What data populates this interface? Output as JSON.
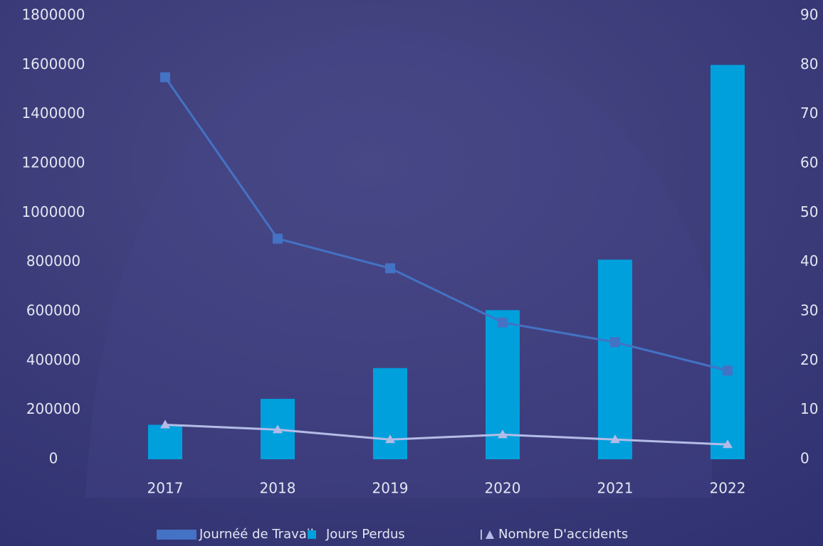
{
  "chart_data": {
    "type": "bar-line",
    "categories": [
      "2017",
      "2018",
      "2019",
      "2020",
      "2021",
      "2022"
    ],
    "series": [
      {
        "name": "Journéé de Travail",
        "type": "line",
        "color": "#4472c4",
        "values": [
          1550000,
          895000,
          775000,
          555000,
          475000,
          360000
        ]
      },
      {
        "name": "Jours Perdus",
        "type": "bar",
        "color": "#00a0dc",
        "values": [
          140000,
          245000,
          370000,
          605000,
          810000,
          1600000
        ]
      },
      {
        "name": "Nombre D'accidents",
        "type": "line",
        "axis": "y2",
        "color": "#b4bce6",
        "values": [
          7,
          6,
          4,
          5,
          4,
          3
        ]
      }
    ],
    "ylim": [
      0,
      1800000
    ],
    "yticks": [
      0,
      200000,
      400000,
      600000,
      800000,
      1000000,
      1200000,
      1400000,
      1600000,
      1800000
    ],
    "y2lim": [
      0,
      90
    ],
    "y2ticks": [
      0,
      10,
      20,
      30,
      40,
      50,
      60,
      70,
      80,
      90
    ],
    "grid": false,
    "legend": "bottom"
  }
}
